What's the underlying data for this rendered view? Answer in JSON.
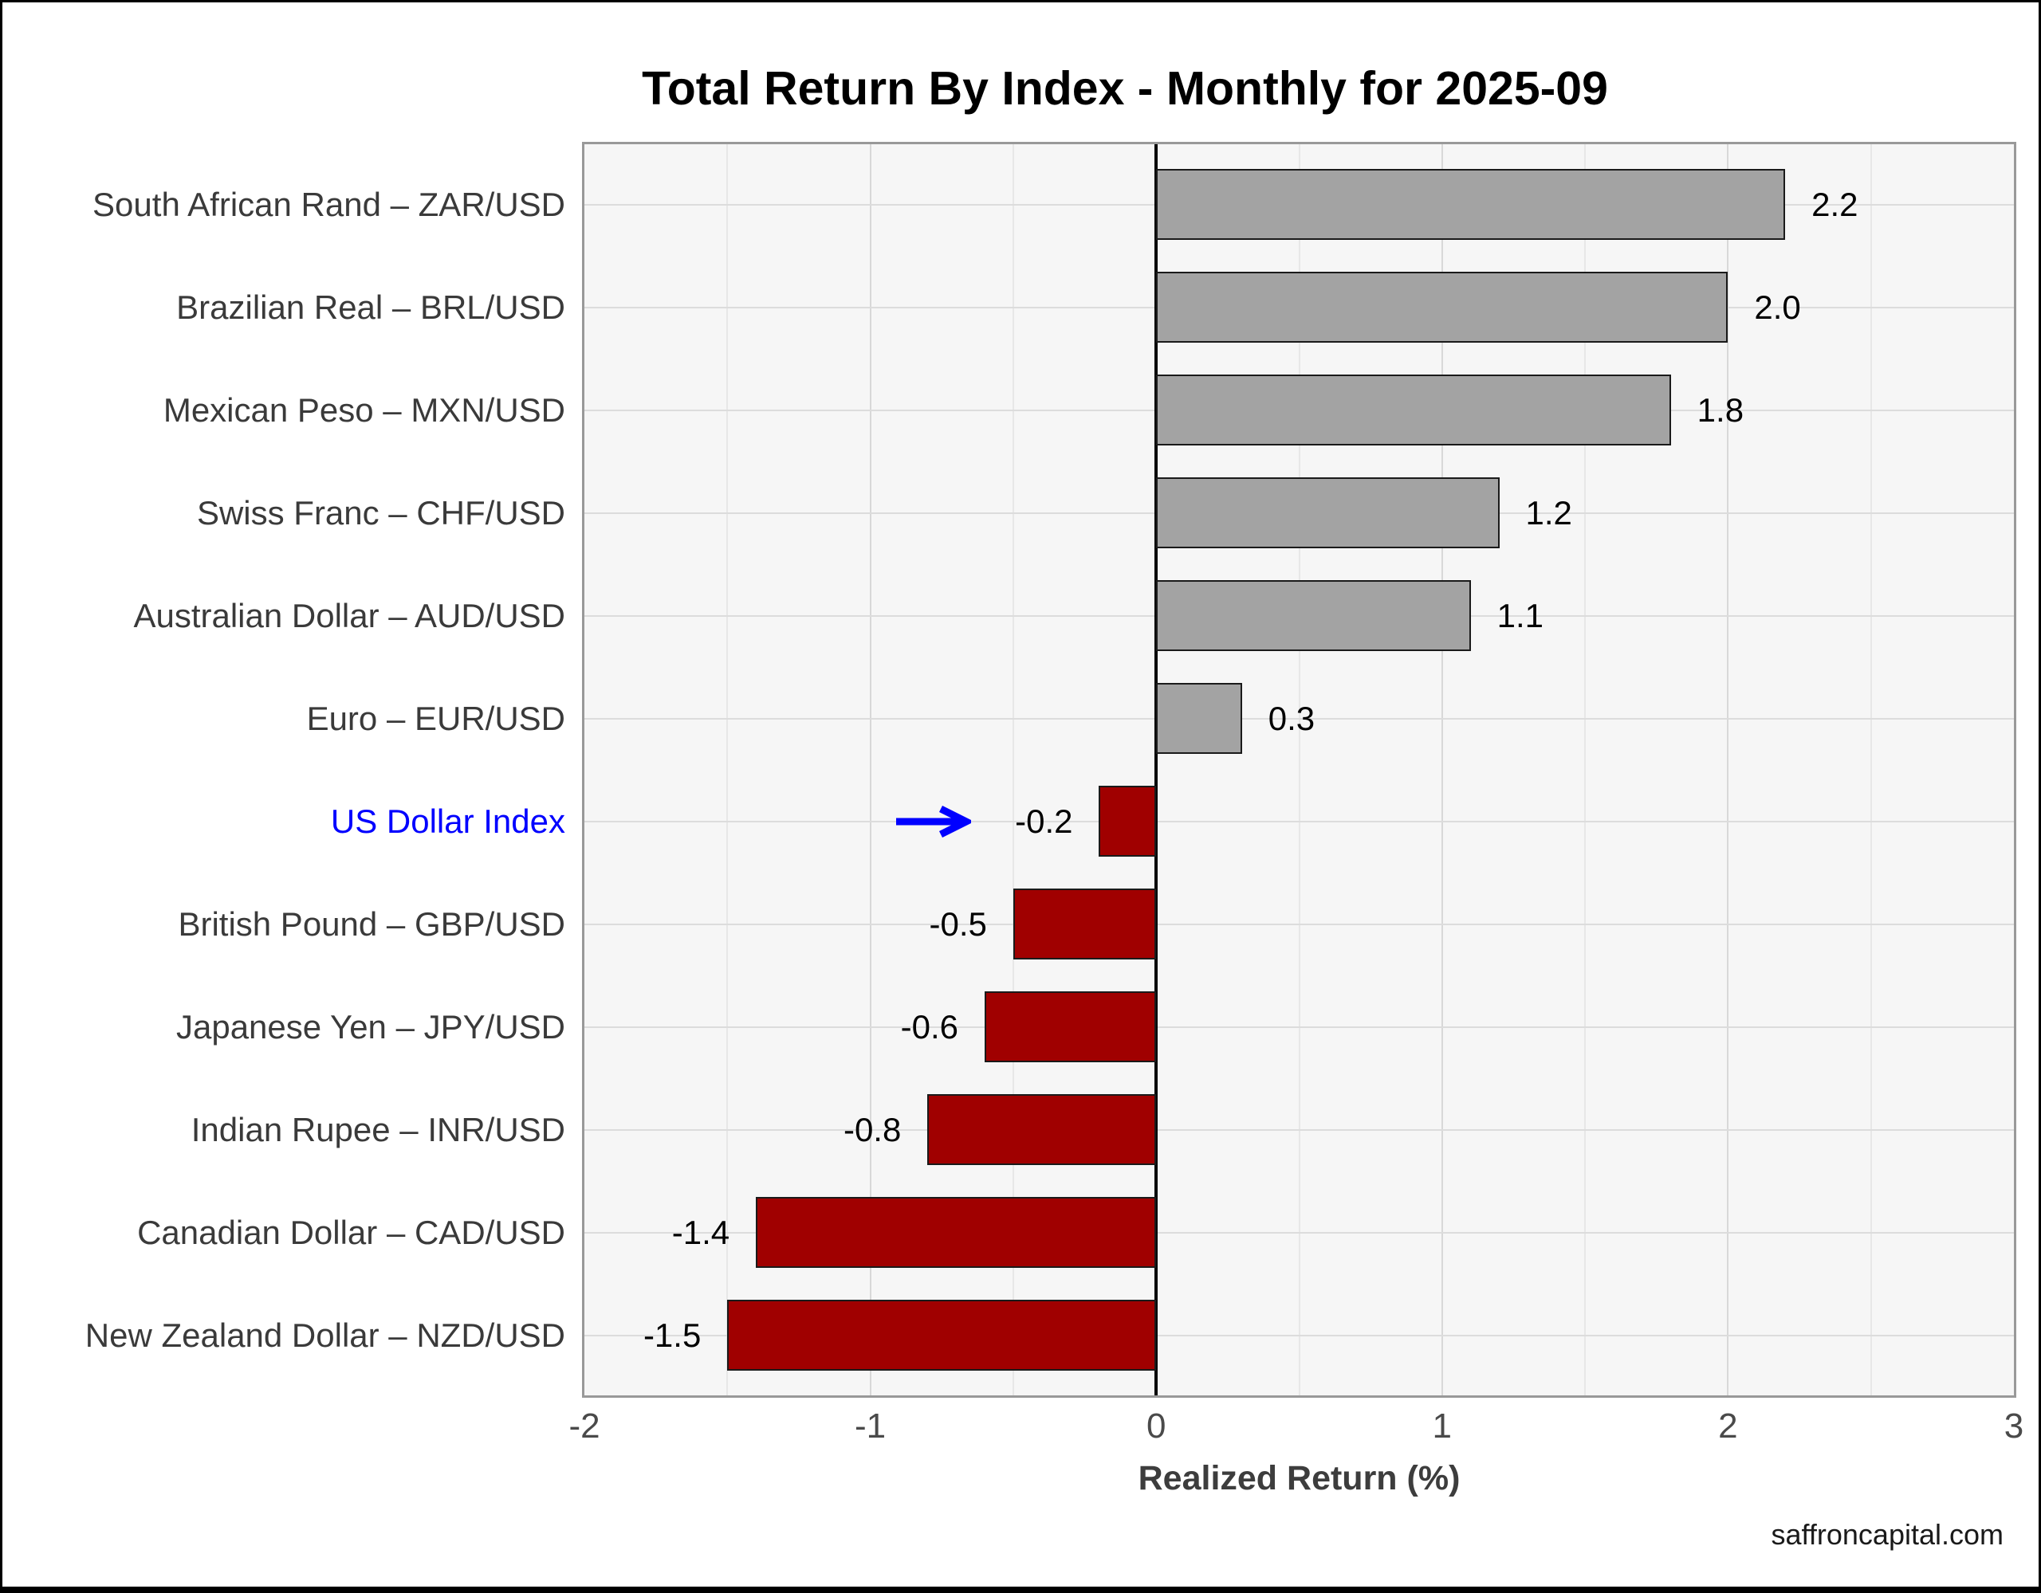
{
  "title": "Total Return By Index - Monthly for 2025-09",
  "footer": "saffroncapital.com",
  "chart_data": {
    "type": "bar",
    "orientation": "horizontal",
    "title": "Total Return By Index - Monthly for 2025-09",
    "xlabel": "Realized Return (%)",
    "ylabel": "",
    "xlim": [
      -2,
      3
    ],
    "grid": true,
    "categories": [
      "South African Rand – ZAR/USD",
      "Brazilian Real – BRL/USD",
      "Mexican Peso – MXN/USD",
      "Swiss Franc – CHF/USD",
      "Australian Dollar – AUD/USD",
      "Euro – EUR/USD",
      "US Dollar Index",
      "British Pound – GBP/USD",
      "Japanese Yen – JPY/USD",
      "Indian Rupee – INR/USD",
      "Canadian Dollar – CAD/USD",
      "New Zealand Dollar – NZD/USD"
    ],
    "values": [
      2.2,
      2.0,
      1.8,
      1.2,
      1.1,
      0.3,
      -0.2,
      -0.5,
      -0.6,
      -0.8,
      -1.4,
      -1.5
    ],
    "value_labels": [
      "2.2",
      "2.0",
      "1.8",
      "1.2",
      "1.1",
      "0.3",
      "-0.2",
      "-0.5",
      "-0.6",
      "-0.8",
      "-1.4",
      "-1.5"
    ],
    "xticks": [
      {
        "value": -2,
        "label": "-2"
      },
      {
        "value": -1,
        "label": "-1"
      },
      {
        "value": 0,
        "label": "0"
      },
      {
        "value": 1,
        "label": "1"
      },
      {
        "value": 2,
        "label": "2"
      },
      {
        "value": 3,
        "label": "3"
      }
    ],
    "colors": {
      "positive_bar": "#a3a3a3",
      "negative_bar": "#a00000",
      "bar_border": "#1a1a1a",
      "highlight_label": "#0000ff",
      "arrow": "#0000ff"
    },
    "highlight": {
      "index": 6,
      "category": "US Dollar Index",
      "annotation": "arrow"
    },
    "legend": null
  }
}
